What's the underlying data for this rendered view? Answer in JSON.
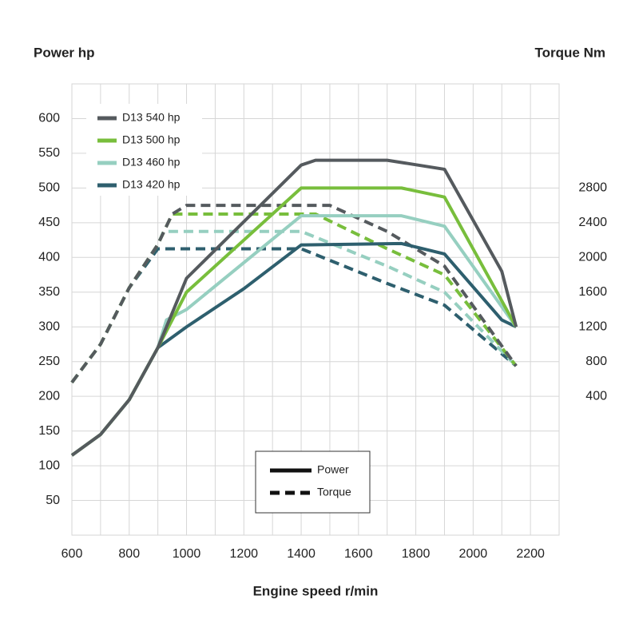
{
  "chart_data": {
    "type": "line",
    "y_label": "Power hp",
    "y2_label": "Torque Nm",
    "x_label": "Engine speed r/min",
    "xlim": [
      600,
      2300
    ],
    "xticks": [
      600,
      800,
      1000,
      1200,
      1400,
      1600,
      1800,
      2000,
      2200
    ],
    "ylim": [
      0,
      650
    ],
    "yticks": [
      50,
      100,
      150,
      200,
      250,
      300,
      350,
      400,
      450,
      500,
      550,
      600
    ],
    "y2lim": [
      -1200,
      4000
    ],
    "y2ticks": [
      400,
      800,
      1200,
      1600,
      2000,
      2400,
      2800
    ],
    "grid": true,
    "style_legend": [
      "Power",
      "Torque"
    ],
    "series": [
      {
        "name": "D13 540 hp",
        "color": "#555a5e",
        "power": {
          "x": [
            600,
            700,
            800,
            900,
            1000,
            1400,
            1450,
            1700,
            1900,
            2100,
            2150
          ],
          "values": [
            115,
            145,
            195,
            270,
            370,
            533,
            540,
            540,
            527,
            380,
            300
          ]
        },
        "torque": {
          "x": [
            600,
            700,
            800,
            900,
            950,
            1000,
            1500,
            1700,
            1900,
            2150
          ],
          "values": [
            560,
            1000,
            1650,
            2150,
            2500,
            2600,
            2600,
            2300,
            1900,
            750
          ]
        }
      },
      {
        "name": "D13 500 hp",
        "color": "#78be3c",
        "power": {
          "x": [
            600,
            700,
            800,
            900,
            1000,
            1400,
            1750,
            1900,
            2150
          ],
          "values": [
            115,
            145,
            195,
            270,
            350,
            500,
            500,
            487,
            300
          ]
        },
        "torque": {
          "x": [
            600,
            700,
            800,
            900,
            950,
            1450,
            1700,
            1900,
            2150
          ],
          "values": [
            560,
            1000,
            1650,
            2150,
            2500,
            2500,
            2100,
            1800,
            750
          ]
        }
      },
      {
        "name": "D13 460 hp",
        "color": "#96cfc0",
        "power": {
          "x": [
            600,
            700,
            800,
            900,
            930,
            1000,
            1400,
            1750,
            1900,
            2150
          ],
          "values": [
            115,
            145,
            195,
            270,
            310,
            325,
            460,
            460,
            445,
            300
          ]
        },
        "torque": {
          "x": [
            600,
            700,
            800,
            900,
            920,
            1400,
            1700,
            1900,
            2150
          ],
          "values": [
            560,
            1000,
            1650,
            2150,
            2300,
            2300,
            1900,
            1600,
            750
          ]
        }
      },
      {
        "name": "D13 420 hp",
        "color": "#2e5f6e",
        "power": {
          "x": [
            600,
            700,
            800,
            900,
            1000,
            1200,
            1400,
            1750,
            1900,
            2100,
            2150
          ],
          "values": [
            115,
            145,
            195,
            270,
            300,
            355,
            418,
            420,
            405,
            310,
            300
          ]
        },
        "torque": {
          "x": [
            600,
            700,
            800,
            900,
            1400,
            1700,
            1900,
            2150
          ],
          "values": [
            560,
            1000,
            1650,
            2100,
            2100,
            1700,
            1450,
            750
          ]
        }
      }
    ]
  }
}
